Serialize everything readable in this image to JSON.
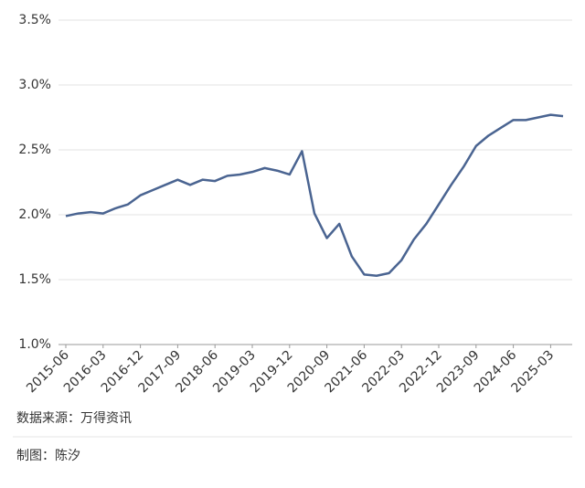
{
  "chart_data": {
    "type": "line",
    "categories": [
      "2015-06",
      null,
      null,
      "2016-03",
      null,
      null,
      "2016-12",
      null,
      null,
      "2017-09",
      null,
      null,
      "2018-06",
      null,
      null,
      "2019-03",
      null,
      null,
      "2019-12",
      null,
      null,
      "2020-09",
      null,
      null,
      "2021-06",
      null,
      null,
      "2022-03",
      null,
      null,
      "2022-12",
      null,
      null,
      "2023-09",
      null,
      null,
      "2024-06",
      null,
      null,
      "2025-03",
      null
    ],
    "series": [
      {
        "color": "#4a6491",
        "values": [
          1.99,
          2.01,
          2.02,
          2.01,
          2.05,
          2.08,
          2.15,
          2.19,
          2.23,
          2.27,
          2.23,
          2.27,
          2.26,
          2.3,
          2.31,
          2.33,
          2.36,
          2.34,
          2.31,
          2.49,
          2.01,
          1.82,
          1.93,
          1.68,
          1.54,
          1.53,
          1.55,
          1.65,
          1.81,
          1.93,
          2.08,
          2.23,
          2.37,
          2.53,
          2.61,
          2.67,
          2.73,
          2.73,
          2.75,
          2.77,
          2.76
        ]
      }
    ],
    "ylim": [
      1.0,
      3.5
    ],
    "yticks": [
      {
        "value": 1.0,
        "label": "1.0%"
      },
      {
        "value": 1.5,
        "label": "1.5%"
      },
      {
        "value": 2.0,
        "label": "2.0%"
      },
      {
        "value": 2.5,
        "label": "2.5%"
      },
      {
        "value": 3.0,
        "label": "3.0%"
      },
      {
        "value": 3.5,
        "label": "3.5%"
      }
    ],
    "grid": true
  },
  "footer": {
    "source": "数据来源：万得资讯",
    "author": "制图：陈汐"
  }
}
